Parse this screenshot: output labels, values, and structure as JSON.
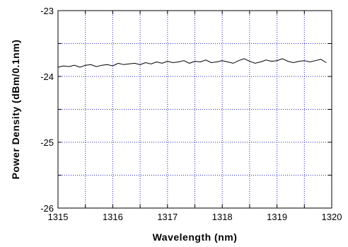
{
  "chart_data": {
    "type": "line",
    "title": "",
    "xlabel": "Wavelength (nm)",
    "ylabel": "Power Density (dBm/0.1nm)",
    "xlim": [
      1315,
      1320
    ],
    "ylim": [
      -26,
      -23
    ],
    "xticks": [
      1315,
      1316,
      1317,
      1318,
      1319,
      1320
    ],
    "xtick_labels": [
      "1315",
      "1316",
      "1317",
      "1318",
      "1319",
      "1320"
    ],
    "yticks": [
      -26,
      -25,
      -24,
      -23
    ],
    "ytick_labels": [
      "-26",
      "-25",
      "-24",
      "-23"
    ],
    "grid": true,
    "grid_style": "dotted",
    "grid_color": "#2222cc",
    "line_color": "#000000",
    "series": [
      {
        "x": [
          1315.0,
          1315.1,
          1315.2,
          1315.3,
          1315.4,
          1315.5,
          1315.6,
          1315.7,
          1315.8,
          1315.9,
          1316.0,
          1316.1,
          1316.2,
          1316.3,
          1316.4,
          1316.5,
          1316.6,
          1316.7,
          1316.8,
          1316.9,
          1317.0,
          1317.1,
          1317.2,
          1317.3,
          1317.4,
          1317.5,
          1317.6,
          1317.7,
          1317.8,
          1317.9,
          1318.0,
          1318.1,
          1318.2,
          1318.3,
          1318.4,
          1318.5,
          1318.6,
          1318.7,
          1318.8,
          1318.9,
          1319.0,
          1319.1,
          1319.2,
          1319.3,
          1319.4,
          1319.5,
          1319.6,
          1319.7,
          1319.8,
          1319.9
        ],
        "y": [
          -23.86,
          -23.84,
          -23.85,
          -23.83,
          -23.86,
          -23.83,
          -23.82,
          -23.85,
          -23.83,
          -23.82,
          -23.84,
          -23.8,
          -23.82,
          -23.81,
          -23.8,
          -23.82,
          -23.79,
          -23.81,
          -23.78,
          -23.8,
          -23.77,
          -23.79,
          -23.78,
          -23.76,
          -23.8,
          -23.77,
          -23.78,
          -23.75,
          -23.79,
          -23.78,
          -23.76,
          -23.78,
          -23.8,
          -23.76,
          -23.73,
          -23.77,
          -23.8,
          -23.78,
          -23.75,
          -23.77,
          -23.76,
          -23.73,
          -23.77,
          -23.79,
          -23.77,
          -23.76,
          -23.78,
          -23.76,
          -23.74,
          -23.79
        ]
      }
    ]
  }
}
